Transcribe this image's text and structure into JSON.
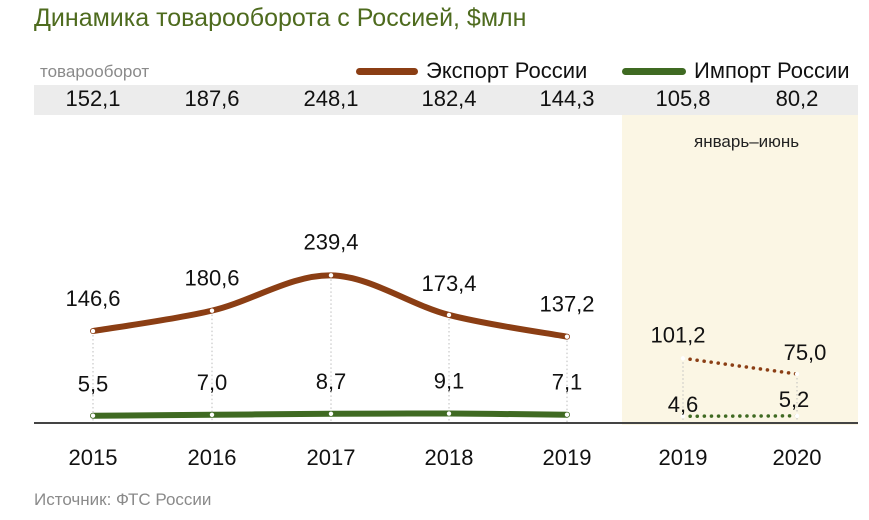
{
  "title": "Динамика товарооборота с Россией, $млн",
  "totals_label": "товарооборот",
  "period_label": "январь–июнь",
  "source": "Источник: ФТС России",
  "colors": {
    "export": "#8b3e14",
    "import": "#3f6a22",
    "title": "#4e6b1e"
  },
  "chart_data": {
    "type": "line",
    "title": "Динамика товарооборота с Россией, $млн",
    "categories": [
      "2015",
      "2016",
      "2017",
      "2018",
      "2019",
      "2019",
      "2020"
    ],
    "totals": [
      "152,1",
      "187,6",
      "248,1",
      "182,4",
      "144,3",
      "105,8",
      "80,2"
    ],
    "legend_position": "top-right",
    "grid": false,
    "series": [
      {
        "name": "Экспорт России",
        "values": [
          146.6,
          180.6,
          239.4,
          173.4,
          137.2,
          101.2,
          75.0
        ],
        "labels": [
          "146,6",
          "180,6",
          "239,4",
          "173,4",
          "137,2",
          "101,2",
          "75,0"
        ]
      },
      {
        "name": "Импорт России",
        "values": [
          5.5,
          7.0,
          8.7,
          9.1,
          7.1,
          4.6,
          5.2
        ],
        "labels": [
          "5,5",
          "7,0",
          "8,7",
          "9,1",
          "7,1",
          "4,6",
          "5,2"
        ]
      }
    ]
  }
}
